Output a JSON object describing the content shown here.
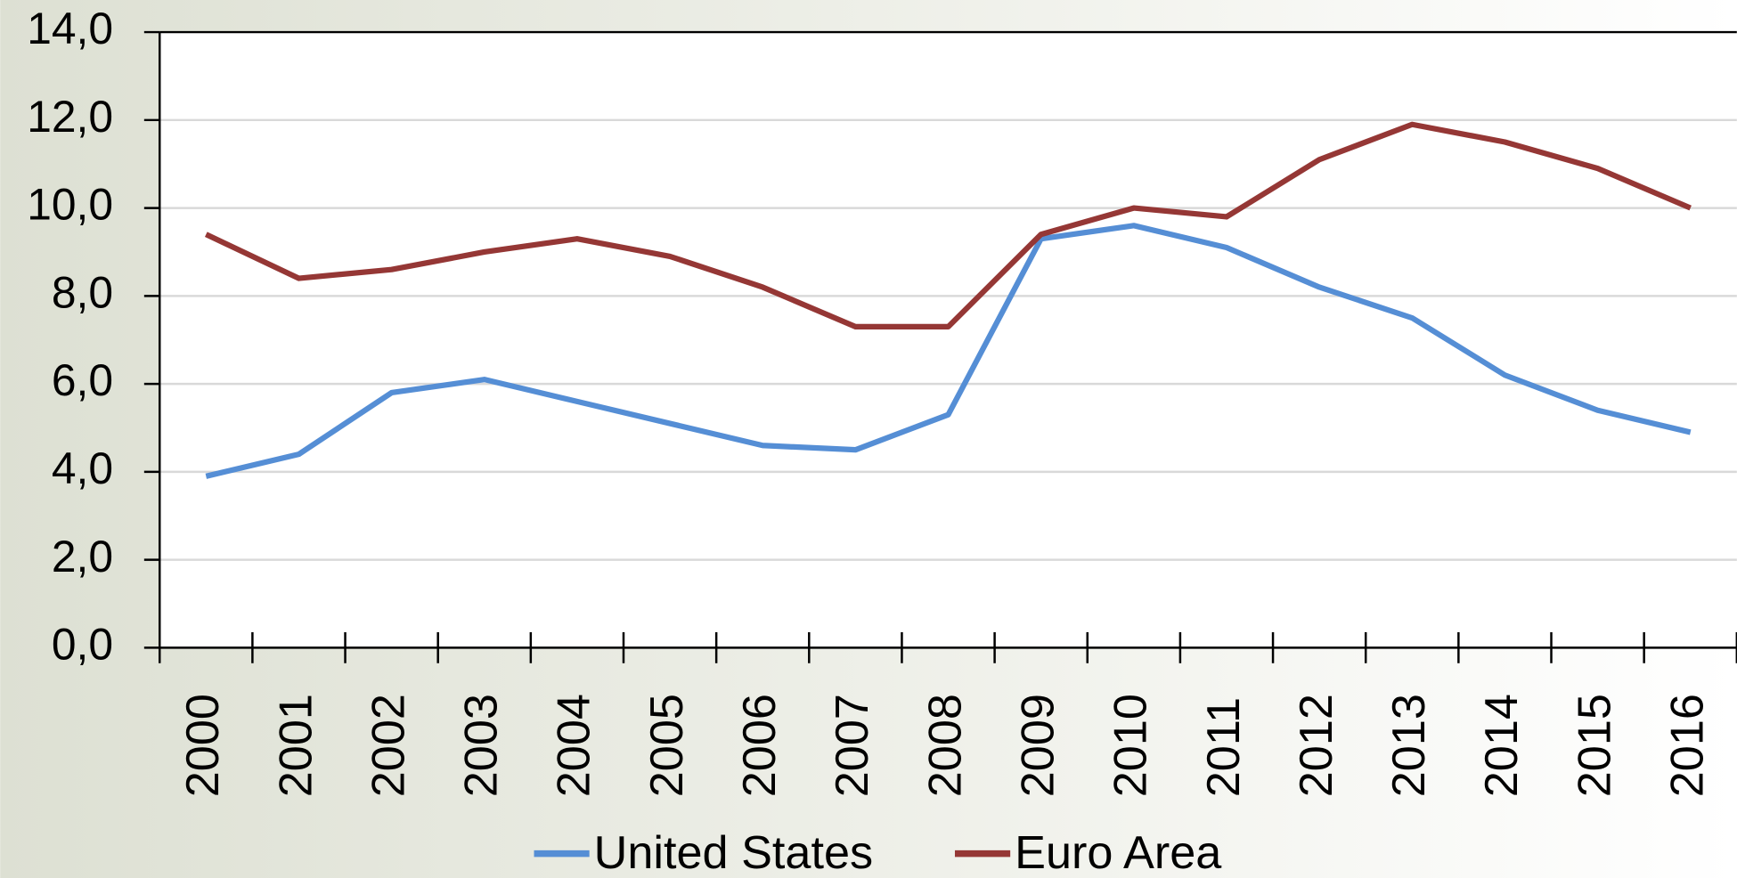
{
  "chart_data": {
    "type": "line",
    "categories": [
      "2000",
      "2001",
      "2002",
      "2003",
      "2004",
      "2005",
      "2006",
      "2007",
      "2008",
      "2009",
      "2010",
      "2011",
      "2012",
      "2013",
      "2014",
      "2015",
      "2016"
    ],
    "series": [
      {
        "name": "United States",
        "color": "#558ed5",
        "values": [
          3.9,
          4.4,
          5.8,
          6.1,
          5.6,
          5.1,
          4.6,
          4.5,
          5.3,
          9.3,
          9.6,
          9.1,
          8.2,
          7.5,
          6.2,
          5.4,
          4.9
        ]
      },
      {
        "name": "Euro Area",
        "color": "#953735",
        "values": [
          9.4,
          8.4,
          8.6,
          9.0,
          9.3,
          8.9,
          8.2,
          7.3,
          7.3,
          9.4,
          10.0,
          9.8,
          11.1,
          11.9,
          11.5,
          10.9,
          10.0
        ]
      }
    ],
    "ylim": [
      0,
      14
    ],
    "yticks": [
      {
        "value": 0,
        "label": "0,0"
      },
      {
        "value": 2,
        "label": "2,0"
      },
      {
        "value": 4,
        "label": "4,0"
      },
      {
        "value": 6,
        "label": "6,0"
      },
      {
        "value": 8,
        "label": "8,0"
      },
      {
        "value": 10,
        "label": "10,0"
      },
      {
        "value": 12,
        "label": "12,0"
      },
      {
        "value": 14,
        "label": "14,0"
      }
    ],
    "grid": true,
    "legend": "bottom"
  }
}
